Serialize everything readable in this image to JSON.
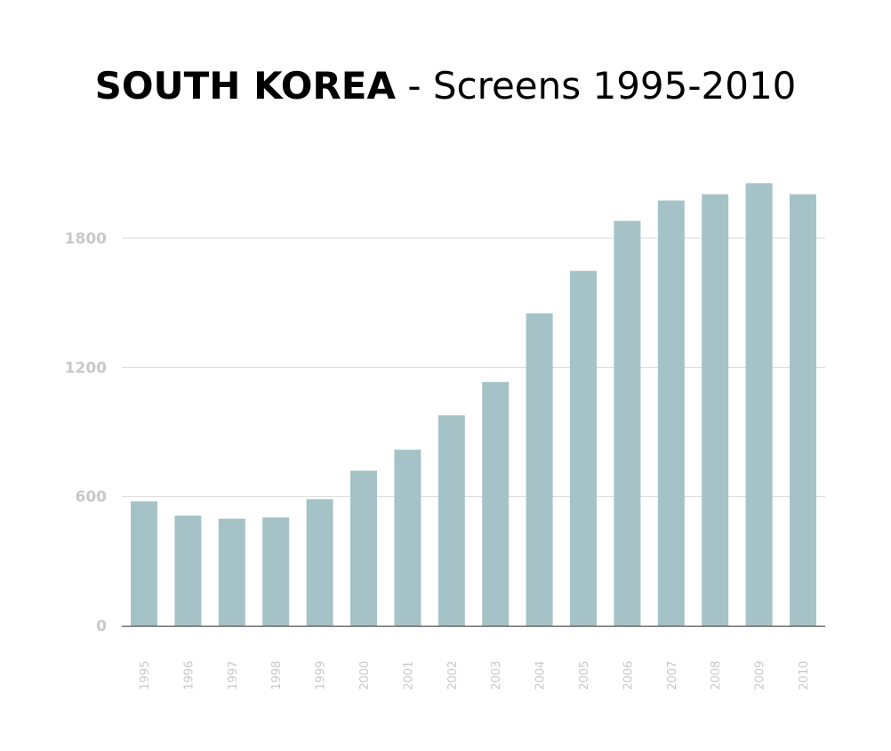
{
  "title": {
    "bold": "SOUTH KOREA",
    "rest": " - Screens 1995-2010"
  },
  "chart_data": {
    "type": "bar",
    "title": "SOUTH KOREA - Screens 1995-2010",
    "xlabel": "",
    "ylabel": "",
    "categories": [
      "1995",
      "1996",
      "1997",
      "1998",
      "1999",
      "2000",
      "2001",
      "2002",
      "2003",
      "2004",
      "2005",
      "2006",
      "2007",
      "2008",
      "2009",
      "2010"
    ],
    "values": [
      577,
      511,
      497,
      503,
      588,
      720,
      818,
      977,
      1132,
      1451,
      1648,
      1880,
      1975,
      2004,
      2055,
      2004
    ],
    "yticks": [
      0,
      600,
      1200,
      1800
    ],
    "ylim": [
      0,
      2200
    ],
    "grid": true,
    "legend": "none",
    "bar_color": "#a5c3c7",
    "grid_color": "#d9d9d9",
    "axis_color": "#333333",
    "tick_color": "#c8c8c8"
  }
}
